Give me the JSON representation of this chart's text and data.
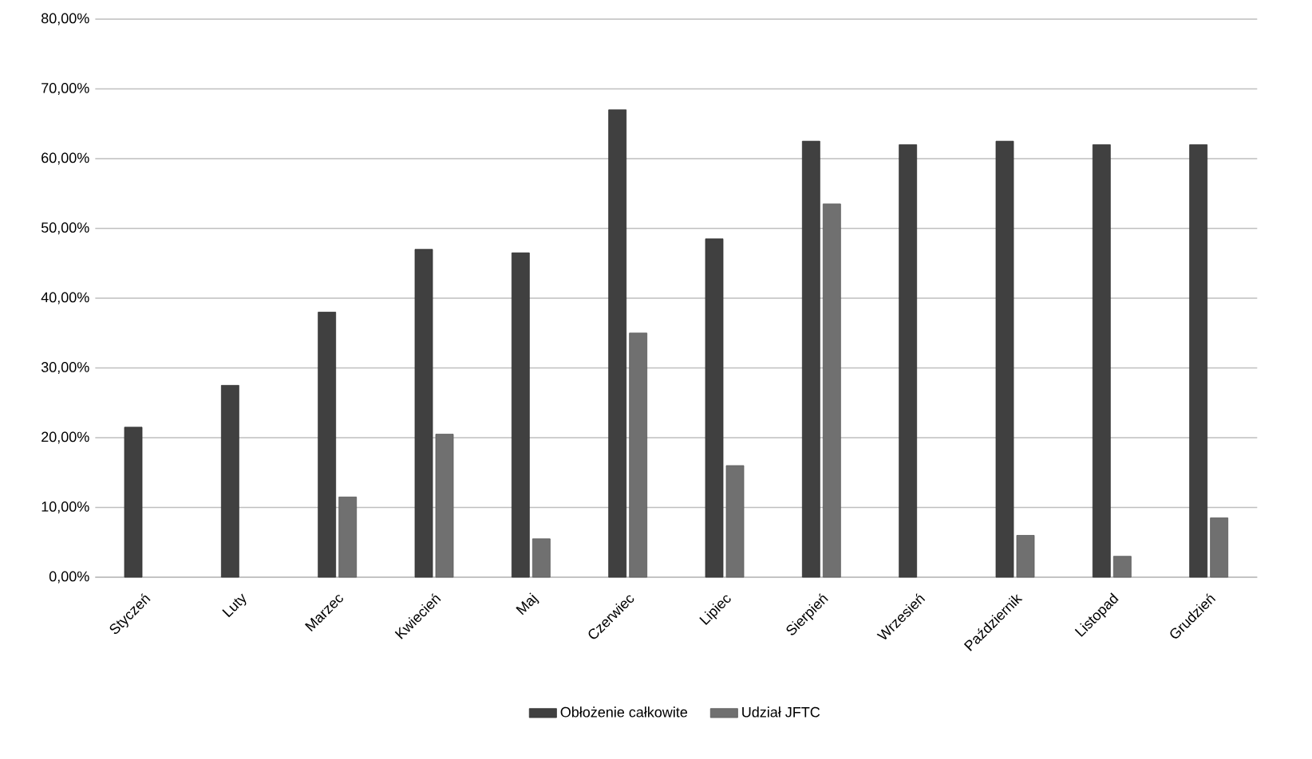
{
  "chart_data": {
    "type": "bar",
    "categories": [
      "Styczeń",
      "Luty",
      "Marzec",
      "Kwiecień",
      "Maj",
      "Czerwiec",
      "Lipiec",
      "Sierpień",
      "Wrzesień",
      "Październik",
      "Listopad",
      "Grudzień"
    ],
    "series": [
      {
        "name": "Obłożenie całkowite",
        "color": "#404040",
        "values": [
          21.5,
          27.5,
          38,
          47,
          46.5,
          67,
          48.5,
          62.5,
          62,
          62.5,
          62,
          62
        ]
      },
      {
        "name": "Udział JFTC",
        "color": "#707070",
        "values": [
          null,
          null,
          11.5,
          20.5,
          5.5,
          35,
          16,
          53.5,
          null,
          6,
          3,
          8.5
        ]
      }
    ],
    "ylim": [
      0,
      80
    ],
    "yticks": [
      {
        "value": 0,
        "label": "0,00%"
      },
      {
        "value": 10,
        "label": "10,00%"
      },
      {
        "value": 20,
        "label": "20,00%"
      },
      {
        "value": 30,
        "label": "30,00%"
      },
      {
        "value": 40,
        "label": "40,00%"
      },
      {
        "value": 50,
        "label": "50,00%"
      },
      {
        "value": 60,
        "label": "60,00%"
      },
      {
        "value": 70,
        "label": "70,00%"
      },
      {
        "value": 80,
        "label": "80,00%"
      }
    ],
    "grid": "y",
    "legend": "bottom"
  }
}
